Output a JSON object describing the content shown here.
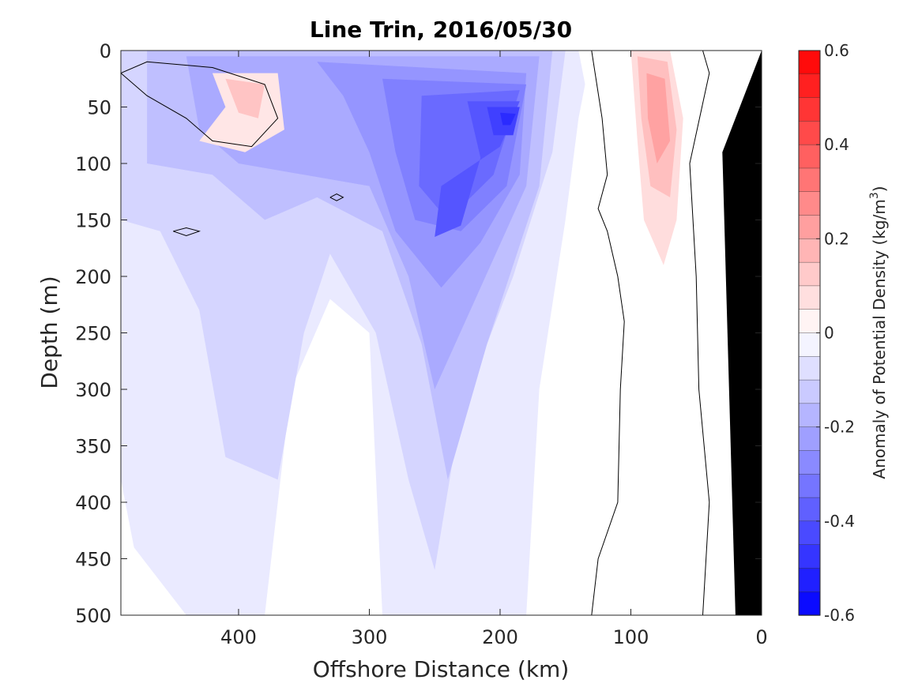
{
  "chart_data": {
    "type": "heatmap",
    "title": "Line Trin, 2016/05/30",
    "xlabel": "Offshore Distance (km)",
    "ylabel": "Depth (m)",
    "xlim": [
      490,
      0
    ],
    "ylim": [
      0,
      500
    ],
    "x_reversed": true,
    "y_reversed": true,
    "xticks": [
      400,
      300,
      200,
      100,
      0
    ],
    "yticks": [
      0,
      50,
      100,
      150,
      200,
      250,
      300,
      350,
      400,
      450,
      500
    ],
    "colorbar": {
      "label": "Anomaly of Potential Density (kg/m",
      "label_superscript": "3",
      "label_close": ")",
      "range": [
        -0.6,
        0.6
      ],
      "levels": 24,
      "ticks": [
        0.6,
        0.4,
        0.2,
        0,
        -0.2,
        -0.4,
        -0.6
      ],
      "tick_labels": [
        "0.6",
        "0.4",
        "0.2",
        "0",
        "-0.2",
        "-0.4",
        "-0.6"
      ],
      "colors": {
        "negative_end": "#0000ff",
        "zero": "#ffffff",
        "positive_end": "#ff0000"
      }
    },
    "features": [
      {
        "name": "negative-core-200km",
        "x": 193,
        "y": 60,
        "value": -0.5
      },
      {
        "name": "negative-core-235km",
        "x": 235,
        "y": 150,
        "value": -0.4
      },
      {
        "name": "positive-blob-nearshore",
        "x": 80,
        "y": 80,
        "value": 0.25
      },
      {
        "name": "positive-blob-offshore",
        "x": 395,
        "y": 45,
        "value": 0.15
      },
      {
        "name": "bathymetry",
        "color": "#000000"
      }
    ],
    "zero_contour_color": "#000000",
    "grid": false
  }
}
